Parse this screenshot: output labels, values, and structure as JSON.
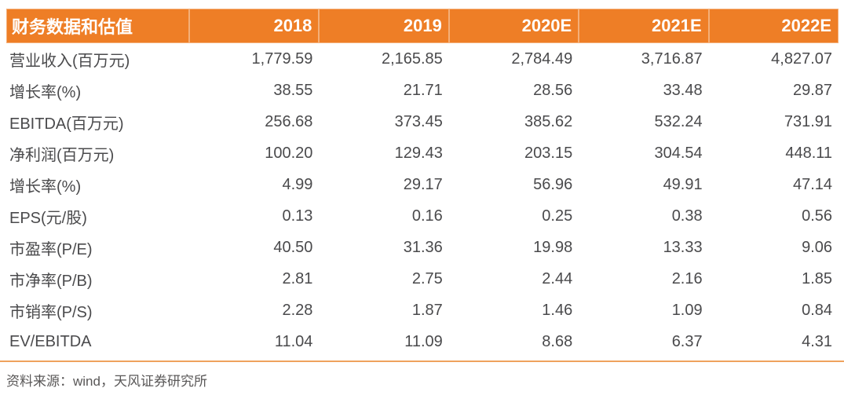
{
  "colors": {
    "accent": "#EE7E26",
    "divider": "#EFA25D",
    "body-text": "#4A4A4C",
    "footer-text": "#595757"
  },
  "table": {
    "header": {
      "title": "财务数据和估值",
      "columns": [
        "2018",
        "2019",
        "2020E",
        "2021E",
        "2022E"
      ]
    },
    "rows": [
      {
        "label": "营业收入(百万元)",
        "values": [
          "1,779.59",
          "2,165.85",
          "2,784.49",
          "3,716.87",
          "4,827.07"
        ]
      },
      {
        "label": "增长率(%)",
        "values": [
          "38.55",
          "21.71",
          "28.56",
          "33.48",
          "29.87"
        ]
      },
      {
        "label": "EBITDA(百万元)",
        "values": [
          "256.68",
          "373.45",
          "385.62",
          "532.24",
          "731.91"
        ]
      },
      {
        "label": "净利润(百万元)",
        "values": [
          "100.20",
          "129.43",
          "203.15",
          "304.54",
          "448.11"
        ]
      },
      {
        "label": "增长率(%)",
        "values": [
          "4.99",
          "29.17",
          "56.96",
          "49.91",
          "47.14"
        ]
      },
      {
        "label": "EPS(元/股)",
        "values": [
          "0.13",
          "0.16",
          "0.25",
          "0.38",
          "0.56"
        ]
      },
      {
        "label": "市盈率(P/E)",
        "values": [
          "40.50",
          "31.36",
          "19.98",
          "13.33",
          "9.06"
        ]
      },
      {
        "label": "市净率(P/B)",
        "values": [
          "2.81",
          "2.75",
          "2.44",
          "2.16",
          "1.85"
        ]
      },
      {
        "label": "市销率(P/S)",
        "values": [
          "2.28",
          "1.87",
          "1.46",
          "1.09",
          "0.84"
        ]
      },
      {
        "label": "EV/EBITDA",
        "values": [
          "11.04",
          "11.09",
          "8.68",
          "6.37",
          "4.31"
        ]
      }
    ]
  },
  "footer": {
    "source_text": "资料来源：wind，天风证券研究所"
  },
  "chart_data": {
    "type": "table",
    "title": "财务数据和估值",
    "categories": [
      "2018",
      "2019",
      "2020E",
      "2021E",
      "2022E"
    ],
    "series": [
      {
        "name": "营业收入(百万元)",
        "values": [
          1779.59,
          2165.85,
          2784.49,
          3716.87,
          4827.07
        ]
      },
      {
        "name": "增长率(%)",
        "values": [
          38.55,
          21.71,
          28.56,
          33.48,
          29.87
        ]
      },
      {
        "name": "EBITDA(百万元)",
        "values": [
          256.68,
          373.45,
          385.62,
          532.24,
          731.91
        ]
      },
      {
        "name": "净利润(百万元)",
        "values": [
          100.2,
          129.43,
          203.15,
          304.54,
          448.11
        ]
      },
      {
        "name": "增长率(%)",
        "values": [
          4.99,
          29.17,
          56.96,
          49.91,
          47.14
        ]
      },
      {
        "name": "EPS(元/股)",
        "values": [
          0.13,
          0.16,
          0.25,
          0.38,
          0.56
        ]
      },
      {
        "name": "市盈率(P/E)",
        "values": [
          40.5,
          31.36,
          19.98,
          13.33,
          9.06
        ]
      },
      {
        "name": "市净率(P/B)",
        "values": [
          2.81,
          2.75,
          2.44,
          2.16,
          1.85
        ]
      },
      {
        "name": "市销率(P/S)",
        "values": [
          2.28,
          1.87,
          1.46,
          1.09,
          0.84
        ]
      },
      {
        "name": "EV/EBITDA",
        "values": [
          11.04,
          11.09,
          8.68,
          6.37,
          4.31
        ]
      }
    ],
    "source": "资料来源：wind，天风证券研究所"
  }
}
